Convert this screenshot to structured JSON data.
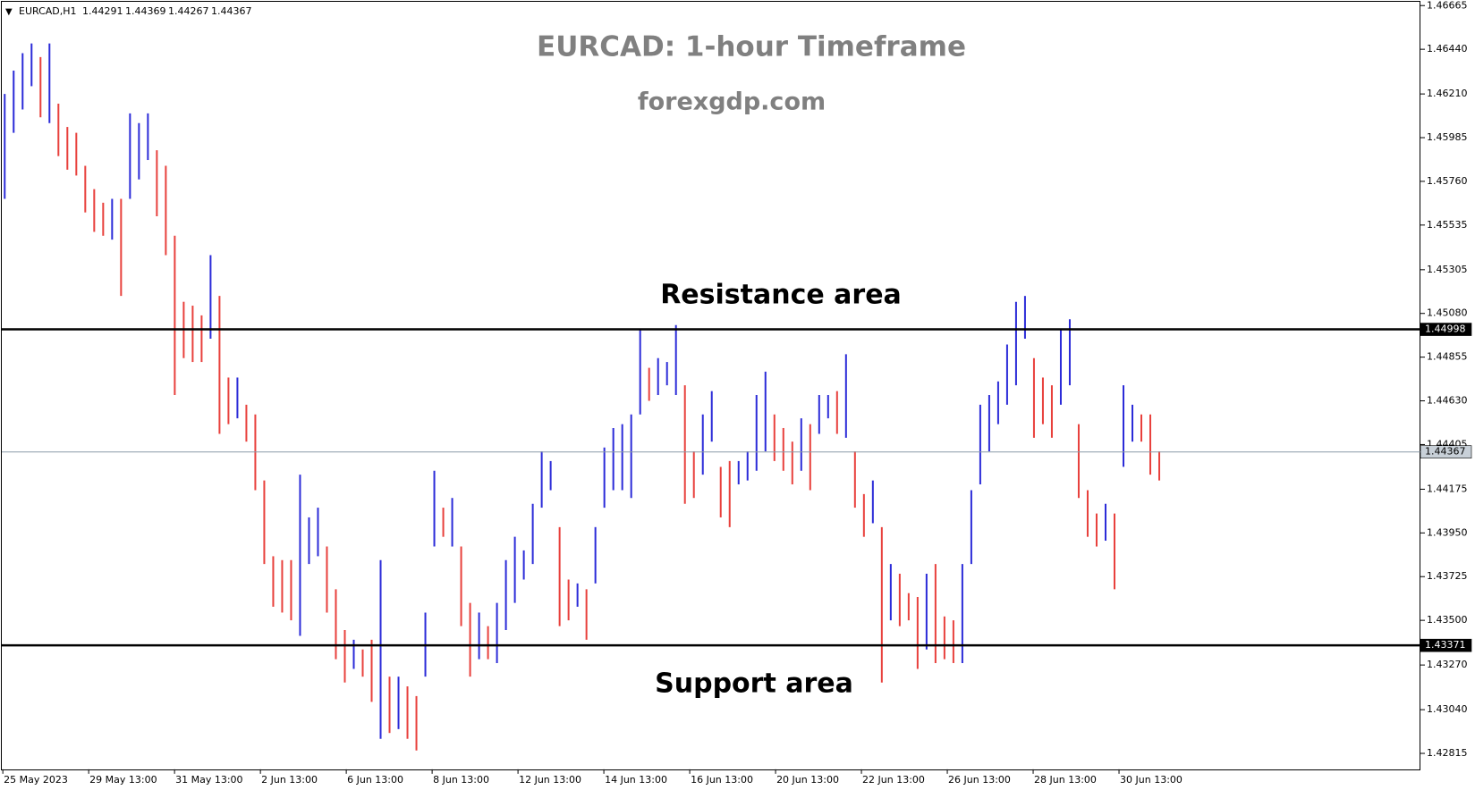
{
  "chart_data": {
    "type": "range",
    "symbol": "EURCAD,H1",
    "quotes": [
      1.44291,
      1.44369,
      1.44267,
      1.44367
    ],
    "title": "EURCAD: 1-hour Timeframe",
    "subtitle": "forexgdp.com",
    "annotations": [
      "Resistance area",
      "Support area"
    ],
    "x_labels": [
      "25 May 2023",
      "29 May 13:00",
      "31 May 13:00",
      "2 Jun 13:00",
      "6 Jun 13:00",
      "8 Jun 13:00",
      "12 Jun 13:00",
      "14 Jun 13:00",
      "16 Jun 13:00",
      "20 Jun 13:00",
      "22 Jun 13:00",
      "26 Jun 13:00",
      "28 Jun 13:00",
      "30 Jun 13:00"
    ],
    "up_color": "#2b2bd8",
    "down_color": "#e8403c",
    "high": [
      1.4621,
      1.4633,
      1.4642,
      1.4647,
      1.464,
      1.4647,
      1.4616,
      1.4604,
      1.4601,
      1.4584,
      1.4572,
      1.4565,
      1.4567,
      1.4567,
      1.4611,
      1.4606,
      1.4611,
      1.4592,
      1.4584,
      1.4548,
      1.4514,
      1.4512,
      1.4507,
      1.4538,
      1.4517,
      1.4475,
      1.4475,
      1.4461,
      1.4456,
      1.4422,
      1.4383,
      1.4381,
      1.4381,
      1.4425,
      1.4403,
      1.4408,
      1.4388,
      1.4366,
      1.4345,
      1.434,
      1.4335,
      1.434,
      1.4381,
      1.4321,
      1.4321,
      1.4316,
      1.4311,
      1.4354,
      1.4427,
      1.4408,
      1.4413,
      1.4388,
      1.4359,
      1.4354,
      1.4347,
      1.4359,
      1.4381,
      1.4393,
      1.4386,
      1.441,
      1.4437,
      1.4432,
      1.4398,
      1.4371,
      1.4369,
      1.4366,
      1.4398,
      1.4439,
      1.4449,
      1.4451,
      1.4456,
      1.45,
      1.448,
      1.4485,
      1.4483,
      1.4502,
      1.4471,
      1.4437,
      1.4456,
      1.4468,
      1.4429,
      1.4432,
      1.4432,
      1.4437,
      1.4466,
      1.4478,
      1.4456,
      1.4449,
      1.4442,
      1.4454,
      1.4451,
      1.4466,
      1.4466,
      1.4468,
      1.4487,
      1.4437,
      1.4415,
      1.4422,
      1.4398,
      1.4379,
      1.4374,
      1.4364,
      1.4362,
      1.4374,
      1.4379,
      1.4352,
      1.435,
      1.4379,
      1.4417,
      1.4461,
      1.4466,
      1.4473,
      1.4492,
      1.4514,
      1.4517,
      1.4485,
      1.4475,
      1.4471,
      1.45,
      1.4505,
      1.4451,
      1.4417,
      1.4405,
      1.441,
      1.4405,
      1.4471,
      1.4461,
      1.4456,
      1.4456,
      1.4437
    ],
    "low": [
      1.4567,
      1.4601,
      1.4613,
      1.4625,
      1.4609,
      1.4606,
      1.4589,
      1.4582,
      1.4579,
      1.456,
      1.455,
      1.4548,
      1.4546,
      1.4517,
      1.4567,
      1.4577,
      1.4587,
      1.4558,
      1.4538,
      1.4466,
      1.4485,
      1.4483,
      1.4483,
      1.4495,
      1.4446,
      1.4451,
      1.4454,
      1.4442,
      1.4417,
      1.4379,
      1.4357,
      1.4354,
      1.435,
      1.4342,
      1.4379,
      1.4383,
      1.4354,
      1.433,
      1.4318,
      1.4325,
      1.4321,
      1.4308,
      1.4289,
      1.4292,
      1.4294,
      1.4289,
      1.4283,
      1.4321,
      1.4388,
      1.4393,
      1.4388,
      1.4347,
      1.4321,
      1.433,
      1.433,
      1.4328,
      1.4345,
      1.4359,
      1.4371,
      1.4379,
      1.4408,
      1.4417,
      1.4347,
      1.435,
      1.4357,
      1.434,
      1.4369,
      1.4408,
      1.4417,
      1.4417,
      1.4413,
      1.4456,
      1.4463,
      1.4466,
      1.4471,
      1.4466,
      1.441,
      1.4413,
      1.4425,
      1.4442,
      1.4403,
      1.4398,
      1.442,
      1.4422,
      1.4427,
      1.4437,
      1.4432,
      1.4427,
      1.442,
      1.4427,
      1.4417,
      1.4446,
      1.4454,
      1.4446,
      1.4444,
      1.4408,
      1.4393,
      1.44,
      1.4318,
      1.435,
      1.4347,
      1.435,
      1.4325,
      1.4335,
      1.4328,
      1.433,
      1.4328,
      1.4328,
      1.4379,
      1.442,
      1.4437,
      1.4451,
      1.4461,
      1.4471,
      1.4495,
      1.4444,
      1.4451,
      1.4444,
      1.4461,
      1.4471,
      1.4413,
      1.4393,
      1.4388,
      1.4391,
      1.4366,
      1.4429,
      1.4442,
      1.4442,
      1.4425,
      1.4422
    ],
    "levels": [
      1.44998,
      1.44367,
      1.43371
    ],
    "level_colors": [
      "#000000",
      "#8a9aa8",
      "#000000"
    ],
    "ylim": [
      1.42733,
      1.46684
    ],
    "yticks": [
      {
        "value": 1.46665,
        "label": "1.46665"
      },
      {
        "value": 1.4644,
        "label": "1.46440"
      },
      {
        "value": 1.4621,
        "label": "1.46210"
      },
      {
        "value": 1.45985,
        "label": "1.45985"
      },
      {
        "value": 1.4576,
        "label": "1.45760"
      },
      {
        "value": 1.45535,
        "label": "1.45535"
      },
      {
        "value": 1.45305,
        "label": "1.45305"
      },
      {
        "value": 1.4508,
        "label": "1.45080"
      },
      {
        "value": 1.44855,
        "label": "1.44855"
      },
      {
        "value": 1.4463,
        "label": "1.44630"
      },
      {
        "value": 1.44405,
        "label": "1.44405"
      },
      {
        "value": 1.44175,
        "label": "1.44175"
      },
      {
        "value": 1.4395,
        "label": "1.43950"
      },
      {
        "value": 1.43725,
        "label": "1.43725"
      },
      {
        "value": 1.435,
        "label": "1.43500"
      },
      {
        "value": 1.4327,
        "label": "1.43270"
      },
      {
        "value": 1.4304,
        "label": "1.43040"
      },
      {
        "value": 1.42815,
        "label": "1.42815"
      }
    ]
  }
}
